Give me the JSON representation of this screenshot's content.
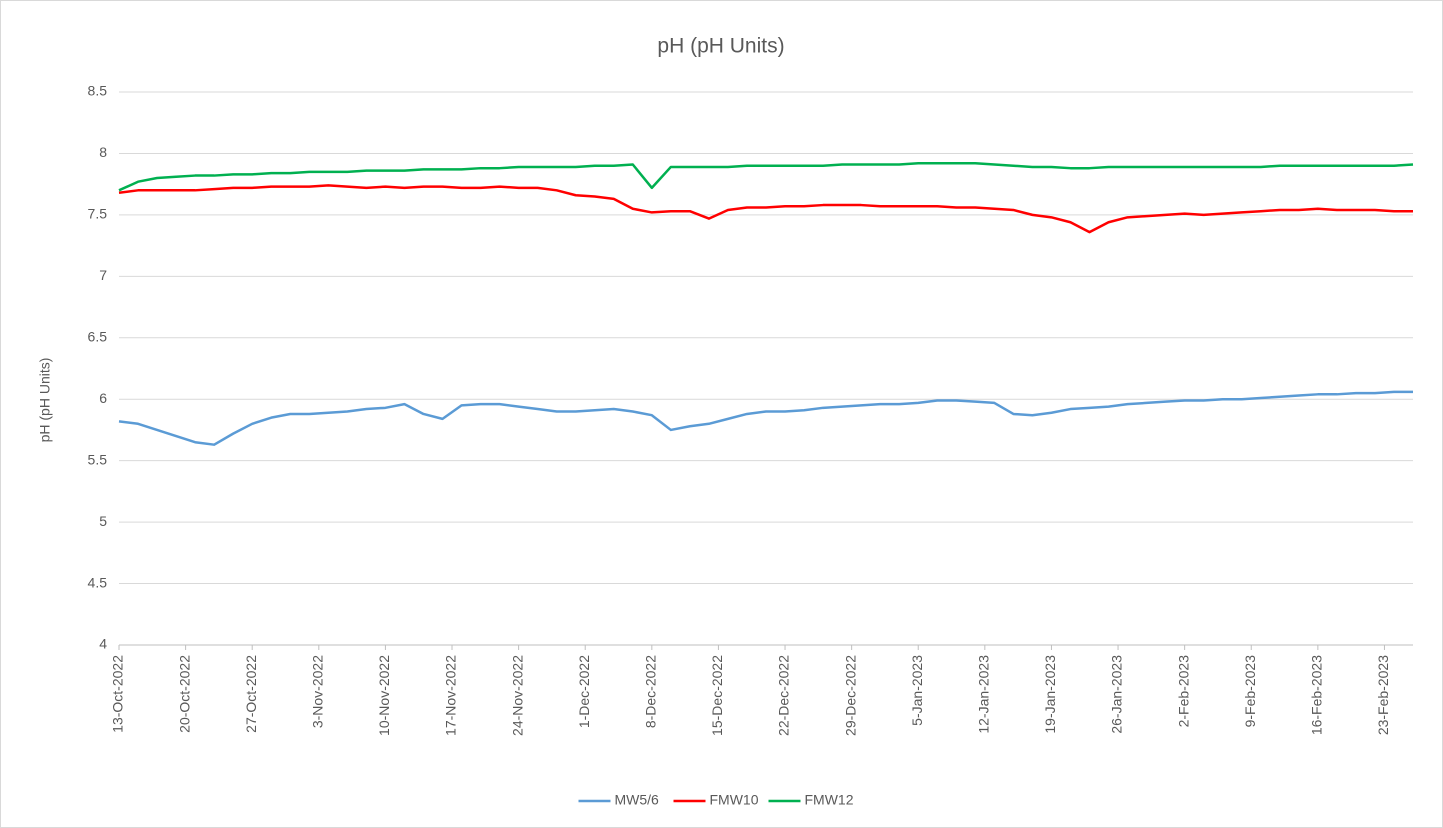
{
  "chart_data": {
    "type": "line",
    "title": "pH (pH Units)",
    "y_label": "pH (pH Units)",
    "x": [
      "2022-10-13",
      "2022-10-15",
      "2022-10-17",
      "2022-10-19",
      "2022-10-21",
      "2022-10-23",
      "2022-10-25",
      "2022-10-27",
      "2022-10-29",
      "2022-10-31",
      "2022-11-02",
      "2022-11-04",
      "2022-11-06",
      "2022-11-08",
      "2022-11-10",
      "2022-11-12",
      "2022-11-14",
      "2022-11-16",
      "2022-11-18",
      "2022-11-20",
      "2022-11-22",
      "2022-11-24",
      "2022-11-26",
      "2022-11-28",
      "2022-11-30",
      "2022-12-02",
      "2022-12-04",
      "2022-12-06",
      "2022-12-08",
      "2022-12-10",
      "2022-12-12",
      "2022-12-14",
      "2022-12-16",
      "2022-12-18",
      "2022-12-20",
      "2022-12-22",
      "2022-12-24",
      "2022-12-26",
      "2022-12-28",
      "2022-12-30",
      "2023-01-01",
      "2023-01-03",
      "2023-01-05",
      "2023-01-07",
      "2023-01-09",
      "2023-01-11",
      "2023-01-13",
      "2023-01-15",
      "2023-01-17",
      "2023-01-19",
      "2023-01-21",
      "2023-01-23",
      "2023-01-25",
      "2023-01-27",
      "2023-01-29",
      "2023-01-31",
      "2023-02-02",
      "2023-02-04",
      "2023-02-06",
      "2023-02-08",
      "2023-02-10",
      "2023-02-12",
      "2023-02-14",
      "2023-02-16",
      "2023-02-18",
      "2023-02-20",
      "2023-02-22",
      "2023-02-24",
      "2023-02-26"
    ],
    "series": [
      {
        "name": "MW5/6",
        "color": "#5b9bd5",
        "values": [
          5.82,
          5.8,
          5.75,
          5.7,
          5.65,
          5.63,
          5.72,
          5.8,
          5.85,
          5.88,
          5.88,
          5.89,
          5.9,
          5.92,
          5.93,
          5.96,
          5.88,
          5.84,
          5.95,
          5.96,
          5.96,
          5.94,
          5.92,
          5.9,
          5.9,
          5.91,
          5.92,
          5.9,
          5.87,
          5.75,
          5.78,
          5.8,
          5.84,
          5.88,
          5.9,
          5.9,
          5.91,
          5.93,
          5.94,
          5.95,
          5.96,
          5.96,
          5.97,
          5.99,
          5.99,
          5.98,
          5.97,
          5.88,
          5.87,
          5.89,
          5.92,
          5.93,
          5.94,
          5.96,
          5.97,
          5.98,
          5.99,
          5.99,
          6.0,
          6.0,
          6.01,
          6.02,
          6.03,
          6.04,
          6.04,
          6.05,
          6.05,
          6.06,
          6.06
        ]
      },
      {
        "name": "FMW10",
        "color": "#ff0000",
        "values": [
          7.68,
          7.7,
          7.7,
          7.7,
          7.7,
          7.71,
          7.72,
          7.72,
          7.73,
          7.73,
          7.73,
          7.74,
          7.73,
          7.72,
          7.73,
          7.72,
          7.73,
          7.73,
          7.72,
          7.72,
          7.73,
          7.72,
          7.72,
          7.7,
          7.66,
          7.65,
          7.63,
          7.55,
          7.52,
          7.53,
          7.53,
          7.47,
          7.54,
          7.56,
          7.56,
          7.57,
          7.57,
          7.58,
          7.58,
          7.58,
          7.57,
          7.57,
          7.57,
          7.57,
          7.56,
          7.56,
          7.55,
          7.54,
          7.5,
          7.48,
          7.44,
          7.36,
          7.44,
          7.48,
          7.49,
          7.5,
          7.51,
          7.5,
          7.51,
          7.52,
          7.53,
          7.54,
          7.54,
          7.55,
          7.54,
          7.54,
          7.54,
          7.53,
          7.53
        ]
      },
      {
        "name": "FMW12",
        "color": "#00b050",
        "values": [
          7.7,
          7.77,
          7.8,
          7.81,
          7.82,
          7.82,
          7.83,
          7.83,
          7.84,
          7.84,
          7.85,
          7.85,
          7.85,
          7.86,
          7.86,
          7.86,
          7.87,
          7.87,
          7.87,
          7.88,
          7.88,
          7.89,
          7.89,
          7.89,
          7.89,
          7.9,
          7.9,
          7.91,
          7.72,
          7.89,
          7.89,
          7.89,
          7.89,
          7.9,
          7.9,
          7.9,
          7.9,
          7.9,
          7.91,
          7.91,
          7.91,
          7.91,
          7.92,
          7.92,
          7.92,
          7.92,
          7.91,
          7.9,
          7.89,
          7.89,
          7.88,
          7.88,
          7.89,
          7.89,
          7.89,
          7.89,
          7.89,
          7.89,
          7.89,
          7.89,
          7.89,
          7.9,
          7.9,
          7.9,
          7.9,
          7.9,
          7.9,
          7.9,
          7.91
        ]
      }
    ],
    "xlim": [
      "2022-10-13",
      "2023-02-26"
    ],
    "xticks": [
      {
        "value": "2022-10-13",
        "label": "13-Oct-2022"
      },
      {
        "value": "2022-10-20",
        "label": "20-Oct-2022"
      },
      {
        "value": "2022-10-27",
        "label": "27-Oct-2022"
      },
      {
        "value": "2022-11-03",
        "label": "3-Nov-2022"
      },
      {
        "value": "2022-11-10",
        "label": "10-Nov-2022"
      },
      {
        "value": "2022-11-17",
        "label": "17-Nov-2022"
      },
      {
        "value": "2022-11-24",
        "label": "24-Nov-2022"
      },
      {
        "value": "2022-12-01",
        "label": "1-Dec-2022"
      },
      {
        "value": "2022-12-08",
        "label": "8-Dec-2022"
      },
      {
        "value": "2022-12-15",
        "label": "15-Dec-2022"
      },
      {
        "value": "2022-12-22",
        "label": "22-Dec-2022"
      },
      {
        "value": "2022-12-29",
        "label": "29-Dec-2022"
      },
      {
        "value": "2023-01-05",
        "label": "5-Jan-2023"
      },
      {
        "value": "2023-01-12",
        "label": "12-Jan-2023"
      },
      {
        "value": "2023-01-19",
        "label": "19-Jan-2023"
      },
      {
        "value": "2023-01-26",
        "label": "26-Jan-2023"
      },
      {
        "value": "2023-02-02",
        "label": "2-Feb-2023"
      },
      {
        "value": "2023-02-09",
        "label": "9-Feb-2023"
      },
      {
        "value": "2023-02-16",
        "label": "16-Feb-2023"
      },
      {
        "value": "2023-02-23",
        "label": "23-Feb-2023"
      }
    ],
    "ylim": [
      4,
      8.5
    ],
    "yticks": [
      4,
      4.5,
      5,
      5.5,
      6,
      6.5,
      7,
      7.5,
      8,
      8.5
    ],
    "grid": true,
    "legend": "bottom"
  }
}
